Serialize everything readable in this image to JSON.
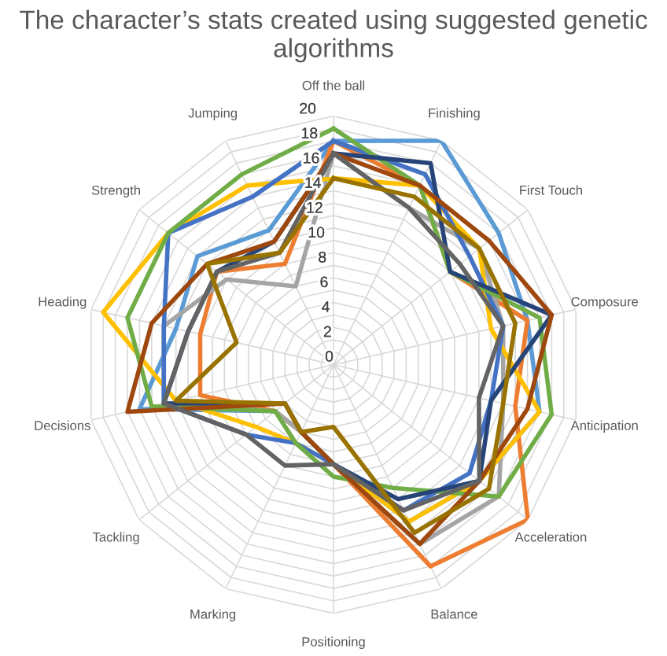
{
  "chart_data": {
    "type": "radar",
    "title": "The character’s stats created using suggested genetic algorithms",
    "categories": [
      "Off the ball",
      "Finishing",
      "First Touch",
      "Composure",
      "Anticipation",
      "Acceleration",
      "Balance",
      "Positioning",
      "Marking",
      "Tackling",
      "Decisions",
      "Heading",
      "Strength",
      "Jumping"
    ],
    "series": [
      {
        "color": "#5b9bd5",
        "values": [
          18,
          20,
          17,
          16,
          17,
          15,
          14,
          8,
          6,
          6,
          16,
          13,
          14,
          12
        ]
      },
      {
        "color": "#ed7d31",
        "values": [
          18,
          16,
          12,
          16,
          15,
          20,
          18,
          8,
          6,
          6,
          11,
          11,
          12,
          9
        ]
      },
      {
        "color": "#a5a5a5",
        "values": [
          17,
          14,
          15,
          14,
          14,
          17,
          16,
          8,
          6,
          6,
          14,
          14,
          11,
          7
        ]
      },
      {
        "color": "#ffc000",
        "values": [
          15,
          16,
          15,
          13,
          17,
          15,
          14,
          8,
          7,
          8,
          13,
          19,
          17,
          16
        ]
      },
      {
        "color": "#4472c4",
        "values": [
          18,
          17,
          14,
          14,
          13,
          14,
          13,
          8,
          7,
          9,
          14,
          14,
          17,
          15
        ]
      },
      {
        "color": "#70ad47",
        "values": [
          19,
          16,
          12,
          17,
          18,
          17,
          11,
          9,
          7,
          6,
          15,
          17,
          17,
          17
        ]
      },
      {
        "color": "#264478",
        "values": [
          17,
          18,
          12,
          18,
          13,
          15,
          12,
          8,
          6,
          5,
          14,
          12,
          12,
          11
        ]
      },
      {
        "color": "#9e480e",
        "values": [
          17,
          16,
          16,
          18,
          16,
          15,
          16,
          8,
          6,
          5,
          17,
          15,
          13,
          11
        ]
      },
      {
        "color": "#636363",
        "values": [
          17,
          14,
          13,
          14,
          12,
          15,
          13,
          8,
          9,
          9,
          14,
          12,
          12,
          10
        ]
      },
      {
        "color": "#997300",
        "values": [
          15,
          15,
          15,
          15,
          14,
          16,
          15,
          5,
          6,
          5,
          13,
          8,
          13,
          10
        ]
      }
    ],
    "ylim": [
      0,
      20
    ],
    "yticks": [
      0,
      2,
      4,
      6,
      8,
      10,
      12,
      14,
      16,
      18,
      20
    ],
    "grid": true
  }
}
